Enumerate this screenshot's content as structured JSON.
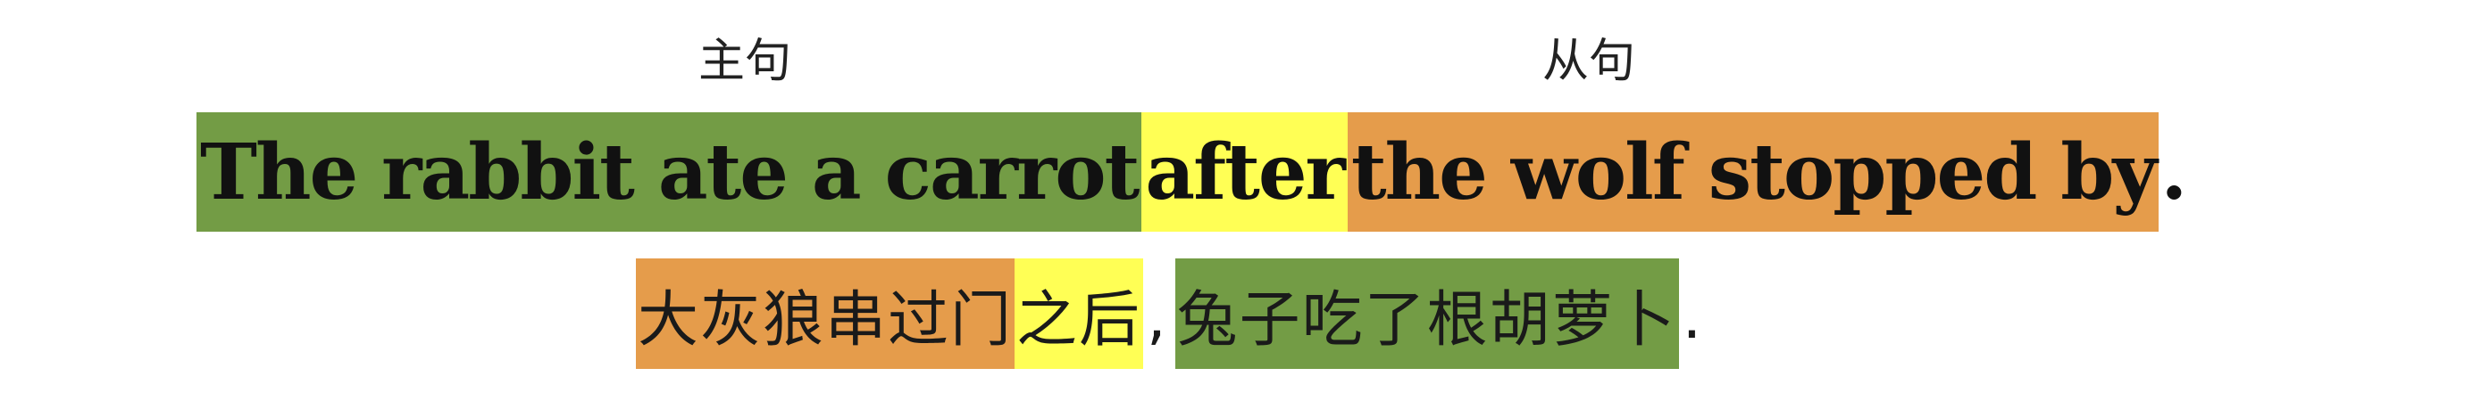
{
  "labels": {
    "main_clause": "主句",
    "subordinate_clause": "从句"
  },
  "colors": {
    "main_clause": "#739c45",
    "conjunction": "#ffff55",
    "subordinate_clause": "#e59c4b"
  },
  "english": {
    "main_clause": "The rabbit ate a carrot",
    "conjunction": "after",
    "subordinate_clause": "the wolf stopped by",
    "end_punct": "."
  },
  "chinese": {
    "subordinate_clause": "大灰狼串过门",
    "conjunction": "之后",
    "comma": ",",
    "main_clause": "兔子吃了根胡萝卜",
    "end_punct": "."
  }
}
